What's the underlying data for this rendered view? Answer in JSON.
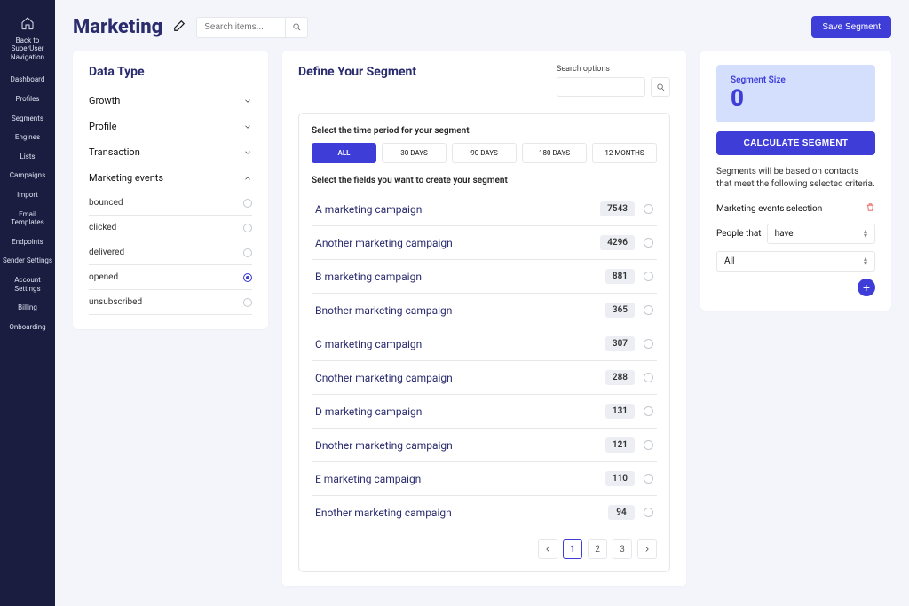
{
  "sidebar": {
    "back_label": "Back to SuperUser Navigation",
    "items": [
      "Dashboard",
      "Profiles",
      "Segments",
      "Engines",
      "Lists",
      "Campaigns",
      "Import",
      "Email Templates",
      "Endpoints",
      "Sender Settings",
      "Account Settings",
      "Billing",
      "Onboarding"
    ]
  },
  "header": {
    "title": "Marketing",
    "search_placeholder": "Search items...",
    "save_button": "Save Segment"
  },
  "left": {
    "heading": "Data Type",
    "groups": [
      {
        "label": "Growth",
        "expanded": false
      },
      {
        "label": "Profile",
        "expanded": false
      },
      {
        "label": "Transaction",
        "expanded": false
      },
      {
        "label": "Marketing events",
        "expanded": true
      }
    ],
    "sub_items": [
      {
        "label": "bounced",
        "selected": false
      },
      {
        "label": "clicked",
        "selected": false
      },
      {
        "label": "delivered",
        "selected": false
      },
      {
        "label": "opened",
        "selected": true
      },
      {
        "label": "unsubscribed",
        "selected": false
      }
    ]
  },
  "mid": {
    "title": "Define Your Segment",
    "search_options_label": "Search options",
    "period_label": "Select the time period for your segment",
    "periods": [
      "ALL",
      "30 DAYS",
      "90 DAYS",
      "180 DAYS",
      "12 MONTHS"
    ],
    "active_period_index": 0,
    "fields_label": "Select the fields you want to create your segment",
    "campaigns": [
      {
        "name": "A marketing campaign",
        "count": "7543"
      },
      {
        "name": "Another marketing campaign",
        "count": "4296"
      },
      {
        "name": "B marketing campaign",
        "count": "881"
      },
      {
        "name": "Bnother marketing campaign",
        "count": "365"
      },
      {
        "name": "C marketing campaign",
        "count": "307"
      },
      {
        "name": "Cnother marketing campaign",
        "count": "288"
      },
      {
        "name": "D marketing campaign",
        "count": "131"
      },
      {
        "name": "Dnother marketing campaign",
        "count": "121"
      },
      {
        "name": "E marketing campaign",
        "count": "110"
      },
      {
        "name": "Enother marketing campaign",
        "count": "94"
      }
    ],
    "pages": [
      "1",
      "2",
      "3"
    ],
    "active_page_index": 0
  },
  "right": {
    "segment_size_label": "Segment Size",
    "segment_size_value": "0",
    "calc_label": "CALCULATE SEGMENT",
    "help_text": "Segments will be based on contacts that meet the following selected criteria.",
    "selection_title": "Marketing events selection",
    "people_that_label": "People that",
    "dd1": "have",
    "dd2": "All"
  }
}
